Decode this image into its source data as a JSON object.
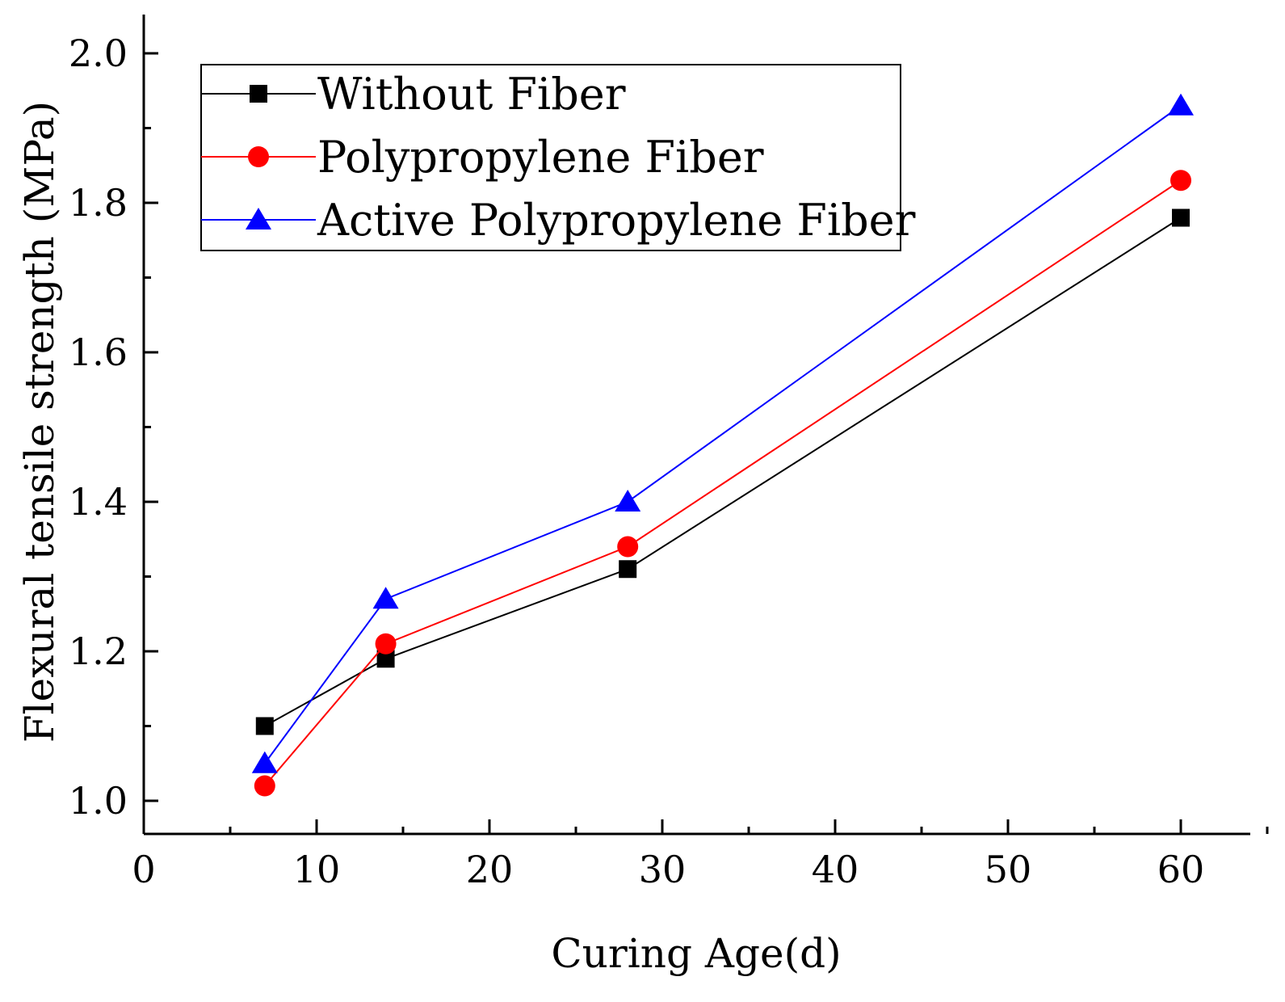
{
  "chart_data": {
    "type": "line",
    "title": "",
    "xlabel": "Curing Age(d)",
    "ylabel": "Flexural tensile strength (MPa)",
    "xlim": [
      0,
      65
    ],
    "ylim": [
      0.95,
      2.05
    ],
    "x_ticks": [
      0,
      10,
      20,
      30,
      40,
      50,
      60
    ],
    "x_tick_labels": [
      "0",
      "10",
      "20",
      "30",
      "40",
      "50",
      "60"
    ],
    "y_ticks": [
      1.0,
      1.2,
      1.4,
      1.6,
      1.8,
      2.0
    ],
    "y_tick_labels": [
      "1.0",
      "1.2",
      "1.4",
      "1.6",
      "1.8",
      "2.0"
    ],
    "grid": false,
    "legend_position": "top-left",
    "x": [
      7,
      14,
      28,
      60
    ],
    "series": [
      {
        "name": "Without Fiber",
        "values": [
          1.1,
          1.19,
          1.31,
          1.78
        ],
        "color": "#000000",
        "marker": "square"
      },
      {
        "name": "Polypropylene Fiber",
        "values": [
          1.02,
          1.21,
          1.34,
          1.83
        ],
        "color": "#ff0000",
        "marker": "circle"
      },
      {
        "name": "Active Polypropylene Fiber",
        "values": [
          1.05,
          1.27,
          1.4,
          1.93
        ],
        "color": "#0000ff",
        "marker": "triangle"
      }
    ]
  }
}
